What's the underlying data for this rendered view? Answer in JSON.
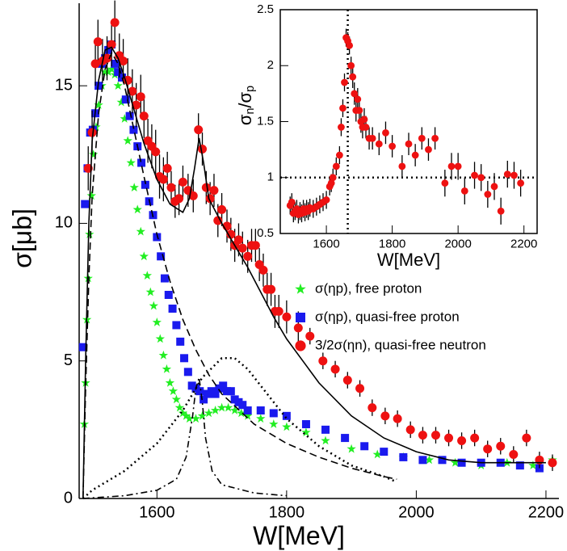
{
  "chart_data": [
    {
      "type": "scatter",
      "xlabel": "W[MeV]",
      "ylabel": "σ[μb]",
      "xlim": [
        1480,
        2220
      ],
      "ylim": [
        0,
        18
      ],
      "xticks": [
        1600,
        1800,
        2000,
        2200
      ],
      "yticks": [
        0,
        5,
        10,
        15
      ],
      "legend": "right",
      "series": [
        {
          "name": "σ(ηp), free proton",
          "color": "#22ee22",
          "marker": "star",
          "x": [
            1488,
            1490,
            1492,
            1494,
            1496,
            1499,
            1502,
            1506,
            1510,
            1515,
            1520,
            1525,
            1530,
            1535,
            1540,
            1545,
            1550,
            1555,
            1560,
            1565,
            1570,
            1575,
            1580,
            1585,
            1590,
            1595,
            1600,
            1605,
            1610,
            1615,
            1620,
            1625,
            1630,
            1635,
            1640,
            1645,
            1650,
            1660,
            1670,
            1680,
            1690,
            1700,
            1710,
            1720,
            1730,
            1740,
            1760,
            1780,
            1800,
            1830,
            1860,
            1900,
            1940,
            1980,
            2020,
            2060,
            2100,
            2140,
            2180,
            2210
          ],
          "values": [
            2.7,
            4.2,
            6.5,
            8.0,
            9.6,
            11.0,
            12.5,
            13.5,
            14.3,
            15.0,
            15.5,
            15.5,
            15.6,
            15.4,
            15.0,
            14.4,
            13.8,
            13.0,
            12.2,
            11.3,
            10.5,
            9.7,
            8.8,
            8.1,
            7.5,
            7.0,
            6.4,
            5.8,
            5.2,
            4.7,
            4.2,
            3.9,
            3.6,
            3.3,
            3.1,
            3.0,
            2.9,
            2.9,
            3.0,
            3.1,
            3.2,
            3.3,
            3.3,
            3.2,
            3.1,
            3.0,
            2.9,
            2.7,
            2.6,
            2.4,
            2.1,
            1.8,
            1.6,
            1.5,
            1.4,
            1.3,
            1.2,
            1.3,
            1.2,
            1.4
          ]
        },
        {
          "name": "σ(ηp), quasi-free proton",
          "color": "#1a1aee",
          "marker": "square",
          "x": [
            1486,
            1489,
            1493,
            1497,
            1501,
            1505,
            1510,
            1515,
            1520,
            1525,
            1530,
            1535,
            1540,
            1546,
            1552,
            1558,
            1564,
            1570,
            1576,
            1582,
            1588,
            1594,
            1600,
            1606,
            1612,
            1618,
            1624,
            1630,
            1636,
            1642,
            1648,
            1654,
            1660,
            1666,
            1672,
            1678,
            1684,
            1690,
            1696,
            1702,
            1708,
            1714,
            1720,
            1726,
            1732,
            1740,
            1760,
            1780,
            1800,
            1830,
            1860,
            1890,
            1920,
            1950,
            1980,
            2010,
            2040,
            2070,
            2100,
            2130,
            2160,
            2190
          ],
          "values": [
            5.5,
            10.7,
            12.0,
            13.3,
            13.4,
            14.0,
            15.0,
            15.8,
            16.0,
            16.3,
            16.5,
            15.8,
            15.5,
            15.3,
            14.5,
            13.9,
            13.4,
            12.8,
            12.2,
            11.4,
            10.8,
            10.3,
            9.5,
            8.8,
            8.0,
            7.4,
            6.9,
            6.3,
            5.7,
            5.1,
            4.6,
            4.1,
            4.0,
            3.9,
            3.6,
            3.8,
            3.9,
            3.8,
            4.0,
            4.1,
            3.9,
            3.9,
            3.6,
            3.5,
            3.4,
            3.2,
            3.2,
            3.1,
            3.0,
            2.7,
            2.5,
            2.2,
            1.9,
            1.7,
            1.5,
            1.4,
            1.4,
            1.3,
            1.3,
            1.3,
            1.2,
            1.1
          ]
        },
        {
          "name": "3/2σ(ηn), quasi-free neutron",
          "color": "#ee1111",
          "marker": "circle",
          "x": [
            1494,
            1500,
            1505,
            1509,
            1516,
            1523,
            1530,
            1535,
            1542,
            1548,
            1555,
            1562,
            1568,
            1575,
            1580,
            1586,
            1592,
            1598,
            1604,
            1610,
            1616,
            1622,
            1628,
            1634,
            1640,
            1648,
            1656,
            1664,
            1670,
            1676,
            1682,
            1688,
            1694,
            1700,
            1708,
            1714,
            1720,
            1726,
            1732,
            1740,
            1746,
            1752,
            1758,
            1764,
            1770,
            1776,
            1782,
            1788,
            1800,
            1818,
            1836,
            1856,
            1875,
            1894,
            1913,
            1932,
            1952,
            1971,
            1991,
            2010,
            2030,
            2050,
            2070,
            2090,
            2110,
            2130,
            2150,
            2170,
            2190,
            2210
          ],
          "values": [
            12.0,
            13.3,
            15.8,
            16.6,
            15.9,
            16.0,
            16.5,
            17.3,
            16.1,
            15.9,
            15.2,
            14.8,
            14.3,
            14.6,
            13.9,
            13.0,
            12.8,
            12.6,
            11.7,
            11.6,
            12.0,
            11.3,
            10.8,
            10.9,
            11.5,
            11.2,
            11.0,
            13.4,
            12.7,
            11.3,
            10.9,
            11.2,
            10.1,
            10.5,
            9.9,
            9.6,
            9.2,
            9.4,
            9.1,
            8.8,
            9.2,
            9.2,
            8.5,
            8.3,
            7.6,
            7.6,
            6.8,
            6.8,
            6.6,
            6.2,
            5.9,
            5.0,
            4.7,
            4.3,
            4.0,
            3.3,
            3.0,
            2.9,
            2.5,
            2.3,
            2.3,
            2.2,
            2.1,
            2.2,
            1.8,
            1.9,
            1.6,
            2.2,
            1.4,
            1.3
          ],
          "errors": [
            0.8,
            0.8,
            0.8,
            0.8,
            0.8,
            0.8,
            0.8,
            0.8,
            0.8,
            0.8,
            0.8,
            0.8,
            0.8,
            0.8,
            0.8,
            0.8,
            0.8,
            0.8,
            0.8,
            0.8,
            0.6,
            0.6,
            0.6,
            0.6,
            0.6,
            0.6,
            0.6,
            0.6,
            0.6,
            0.6,
            0.6,
            0.6,
            0.6,
            0.6,
            0.6,
            0.6,
            0.6,
            0.6,
            0.6,
            0.6,
            0.6,
            0.6,
            0.6,
            0.6,
            0.6,
            0.6,
            0.6,
            0.6,
            0.6,
            0.6,
            0.3,
            0.3,
            0.3,
            0.3,
            0.3,
            0.3,
            0.3,
            0.3,
            0.3,
            0.3,
            0.3,
            0.3,
            0.3,
            0.3,
            0.3,
            0.3,
            0.3,
            0.3,
            0.3,
            0.3
          ]
        }
      ],
      "curves": [
        {
          "dash": "solid",
          "x": [
            1486,
            1490,
            1495,
            1500,
            1510,
            1520,
            1530,
            1540,
            1550,
            1560,
            1580,
            1600,
            1620,
            1640,
            1650,
            1658,
            1665,
            1672,
            1680,
            1700,
            1720,
            1740,
            1760,
            1780,
            1800,
            1850,
            1900,
            1950,
            2000,
            2050,
            2100,
            2150,
            2200
          ],
          "values": [
            0,
            5,
            10,
            13,
            15.2,
            16.3,
            16.4,
            16,
            15.3,
            14.5,
            12.9,
            11.6,
            10.7,
            10.4,
            10.9,
            12.0,
            13.1,
            12.2,
            10.9,
            10.0,
            9.2,
            8.4,
            7.5,
            6.6,
            5.8,
            4.2,
            3.0,
            2.2,
            1.7,
            1.4,
            1.3,
            1.3,
            1.3
          ]
        },
        {
          "dash": "dashed",
          "x": [
            1486,
            1490,
            1495,
            1500,
            1510,
            1520,
            1530,
            1540,
            1550,
            1560,
            1580,
            1600,
            1620,
            1640,
            1660,
            1680,
            1700,
            1750,
            1800,
            1850,
            1900,
            1950,
            1970
          ],
          "values": [
            0,
            4,
            8,
            11,
            14,
            15.6,
            16.2,
            15.8,
            15.0,
            13.9,
            11.7,
            9.6,
            7.9,
            6.5,
            5.4,
            4.5,
            3.8,
            2.7,
            2.0,
            1.5,
            1.1,
            0.8,
            0.7
          ]
        },
        {
          "dash": "dotted",
          "x": [
            1486,
            1500,
            1550,
            1600,
            1640,
            1670,
            1700,
            1720,
            1740,
            1760,
            1800,
            1850,
            1900,
            1950,
            1970
          ],
          "values": [
            0,
            0.3,
            1.0,
            2.0,
            3.2,
            4.4,
            5.1,
            5.1,
            4.7,
            4.1,
            2.9,
            1.9,
            1.2,
            0.8,
            0.6
          ]
        },
        {
          "dash": "dashdot",
          "x": [
            1486,
            1550,
            1600,
            1630,
            1645,
            1655,
            1660,
            1665,
            1670,
            1675,
            1685,
            1700,
            1750,
            1800
          ],
          "values": [
            0,
            0.1,
            0.3,
            0.7,
            1.5,
            3.0,
            4.0,
            4.4,
            3.5,
            2.2,
            1.0,
            0.5,
            0.2,
            0.1
          ]
        }
      ]
    },
    {
      "type": "scatter",
      "xlabel": "W[MeV]",
      "ylabel": "σn/σp",
      "xlim": [
        1460,
        2240
      ],
      "ylim": [
        0.5,
        2.5
      ],
      "xticks": [
        1600,
        1800,
        2000,
        2200
      ],
      "yticks": [
        0.5,
        1,
        1.5,
        2,
        2.5
      ],
      "hline": 1,
      "vline": 1665,
      "series": [
        {
          "color": "#ee1111",
          "marker": "circle",
          "x": [
            1490,
            1495,
            1500,
            1505,
            1510,
            1515,
            1520,
            1525,
            1530,
            1535,
            1540,
            1545,
            1550,
            1560,
            1570,
            1580,
            1590,
            1600,
            1610,
            1615,
            1620,
            1630,
            1640,
            1645,
            1650,
            1655,
            1660,
            1665,
            1670,
            1675,
            1680,
            1685,
            1690,
            1695,
            1700,
            1705,
            1710,
            1715,
            1720,
            1730,
            1740,
            1760,
            1780,
            1800,
            1830,
            1850,
            1870,
            1890,
            1910,
            1930,
            1960,
            1980,
            2000,
            2020,
            2050,
            2070,
            2090,
            2110,
            2130,
            2150,
            2170,
            2190
          ],
          "values": [
            0.75,
            0.78,
            0.68,
            0.7,
            0.72,
            0.67,
            0.7,
            0.68,
            0.72,
            0.69,
            0.72,
            0.7,
            0.73,
            0.72,
            0.74,
            0.76,
            0.78,
            0.8,
            0.92,
            0.95,
            1.0,
            1.1,
            1.2,
            1.45,
            1.62,
            1.85,
            2.25,
            2.22,
            2.18,
            2.0,
            1.9,
            1.75,
            1.6,
            1.7,
            1.6,
            1.5,
            1.45,
            1.52,
            1.45,
            1.35,
            1.35,
            1.3,
            1.4,
            1.28,
            1.1,
            1.3,
            1.2,
            1.35,
            1.25,
            1.35,
            0.95,
            1.1,
            1.1,
            0.88,
            1.02,
            1.0,
            0.85,
            0.92,
            0.7,
            1.03,
            1.02,
            0.95
          ],
          "errors": [
            0.08,
            0.08,
            0.08,
            0.08,
            0.08,
            0.08,
            0.08,
            0.08,
            0.08,
            0.08,
            0.08,
            0.08,
            0.08,
            0.08,
            0.08,
            0.08,
            0.08,
            0.08,
            0.08,
            0.08,
            0.08,
            0.08,
            0.08,
            0.08,
            0.08,
            0.08,
            0.08,
            0.08,
            0.08,
            0.08,
            0.1,
            0.1,
            0.1,
            0.1,
            0.1,
            0.1,
            0.1,
            0.1,
            0.1,
            0.1,
            0.1,
            0.1,
            0.1,
            0.1,
            0.1,
            0.1,
            0.1,
            0.1,
            0.1,
            0.1,
            0.12,
            0.12,
            0.12,
            0.12,
            0.12,
            0.12,
            0.12,
            0.12,
            0.12,
            0.12,
            0.12,
            0.12
          ]
        }
      ]
    }
  ]
}
